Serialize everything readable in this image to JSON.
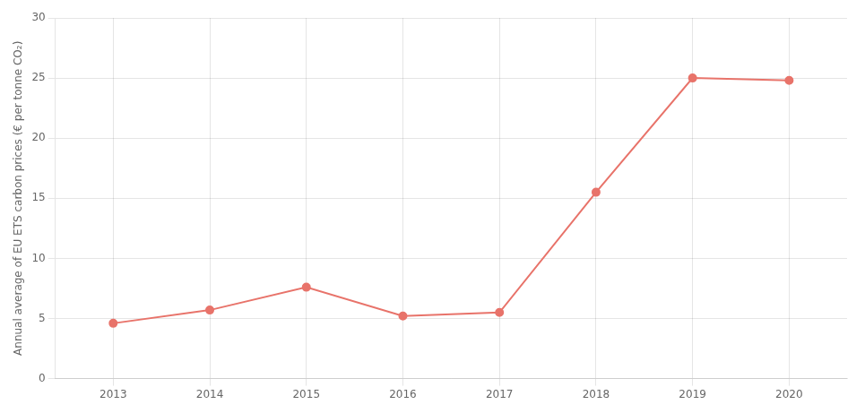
{
  "chart_data": {
    "type": "line",
    "x": [
      2013,
      2014,
      2015,
      2016,
      2017,
      2018,
      2019,
      2020
    ],
    "values": [
      4.6,
      5.7,
      7.6,
      5.2,
      5.5,
      15.5,
      25.0,
      24.8
    ],
    "color": "#e8736a",
    "marker": "circle",
    "ylabel": "Annual average of EU ETS carbon prices (€ per tonne CO₂)",
    "xlim": [
      2012.4,
      2020.6
    ],
    "xticks": [
      2013,
      2014,
      2015,
      2016,
      2017,
      2018,
      2019,
      2020
    ],
    "ylim": [
      0,
      30
    ],
    "yticks": [
      0,
      5,
      10,
      15,
      20,
      25,
      30
    ],
    "grid": true
  }
}
